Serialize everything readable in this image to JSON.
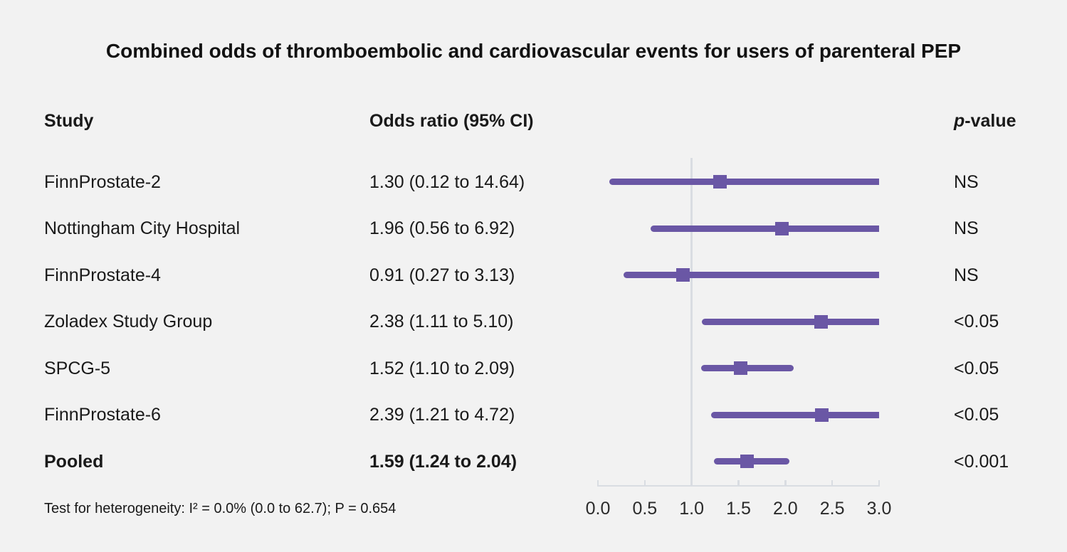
{
  "title": "Combined odds of thromboembolic and cardiovascular events for users of parenteral PEP",
  "columns": {
    "study": "Study",
    "odds_ratio": "Odds ratio (95% CI)",
    "p_italic": "p",
    "p_rest": "-value"
  },
  "footnote": "Test for heterogeneity: I² = 0.0% (0.0 to 62.7); P = 0.654",
  "colors": {
    "marker_purple": "#6a57a5",
    "axis_gray": "#d9dde2",
    "background": "#f2f2f2",
    "text": "#1a1a1a"
  },
  "chart_data": {
    "type": "forest",
    "title": "Combined odds of thromboembolic and cardiovascular events for users of parenteral PEP",
    "xlabel": "",
    "ylabel": "",
    "axis": {
      "min": 0.0,
      "max": 3.0,
      "reference_line": 1.0,
      "tick_values": [
        0.0,
        0.5,
        1.0,
        1.5,
        2.0,
        2.5,
        3.0
      ],
      "tick_labels": [
        "0.0",
        "0.5",
        "1.0",
        "1.5",
        "2.0",
        "2.5",
        "3.0"
      ]
    },
    "rows": [
      {
        "study": "FinnProstate-2",
        "or": 1.3,
        "ci_lo": 0.12,
        "ci_hi": 14.64,
        "or_label": "1.30 (0.12 to 14.64)",
        "p": "NS",
        "bold": false
      },
      {
        "study": "Nottingham City Hospital",
        "or": 1.96,
        "ci_lo": 0.56,
        "ci_hi": 6.92,
        "or_label": "1.96 (0.56 to 6.92)",
        "p": "NS",
        "bold": false
      },
      {
        "study": "FinnProstate-4",
        "or": 0.91,
        "ci_lo": 0.27,
        "ci_hi": 3.13,
        "or_label": "0.91 (0.27 to 3.13)",
        "p": "NS",
        "bold": false
      },
      {
        "study": "Zoladex Study Group",
        "or": 2.38,
        "ci_lo": 1.11,
        "ci_hi": 5.1,
        "or_label": "2.38 (1.11 to 5.10)",
        "p": "<0.05",
        "bold": false
      },
      {
        "study": "SPCG-5",
        "or": 1.52,
        "ci_lo": 1.1,
        "ci_hi": 2.09,
        "or_label": "1.52 (1.10 to 2.09)",
        "p": "<0.05",
        "bold": false
      },
      {
        "study": "FinnProstate-6",
        "or": 2.39,
        "ci_lo": 1.21,
        "ci_hi": 4.72,
        "or_label": "2.39 (1.21 to 4.72)",
        "p": "<0.05",
        "bold": false
      },
      {
        "study": "Pooled",
        "or": 1.59,
        "ci_lo": 1.24,
        "ci_hi": 2.04,
        "or_label": "1.59 (1.24 to 2.04)",
        "p": "<0.001",
        "bold": true
      }
    ]
  }
}
